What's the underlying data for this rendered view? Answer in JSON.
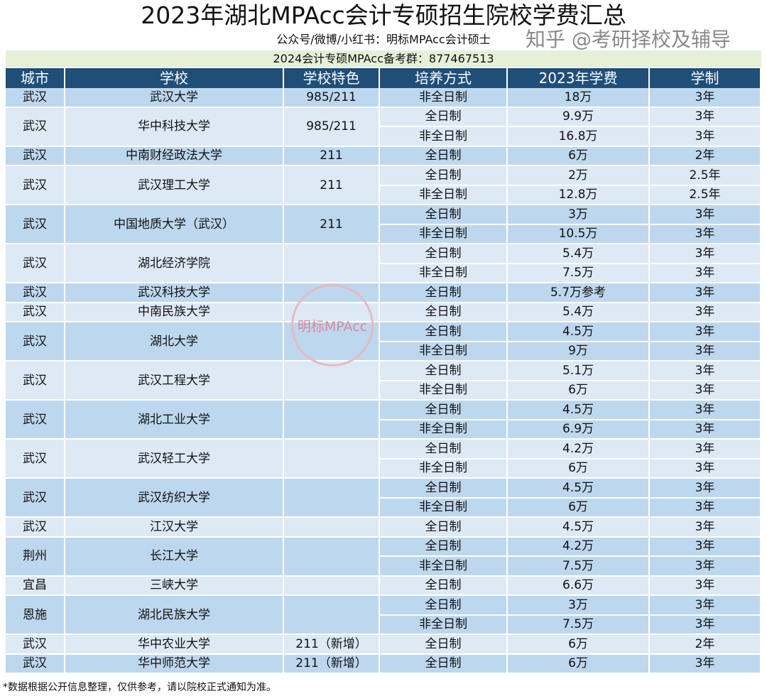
{
  "title": "2023年湖北MPAcc会计专硕招生院校学费汇总",
  "subtitle": "公众号/微博/小红书：明标MPAcc会计硕士",
  "group_line": "2024会计专硕MPAcc备考群：877467513",
  "headers": [
    "城市",
    "学校",
    "学校特色",
    "培养方式",
    "2023年学费",
    "学制"
  ],
  "colors": {
    "header_bg": "#1f4e79",
    "row_dark": "#bdd7ee",
    "row_light": "#dde9f5",
    "band": "#e6f0d8"
  },
  "schools": [
    {
      "city": "武汉",
      "name": "武汉大学",
      "feature": "985/211",
      "programs": [
        [
          "非全日制",
          "18万",
          "3年"
        ]
      ]
    },
    {
      "city": "武汉",
      "name": "华中科技大学",
      "feature": "985/211",
      "programs": [
        [
          "全日制",
          "9.9万",
          "3年"
        ],
        [
          "非全日制",
          "16.8万",
          "3年"
        ]
      ]
    },
    {
      "city": "武汉",
      "name": "中南财经政法大学",
      "feature": "211",
      "programs": [
        [
          "全日制",
          "6万",
          "2年"
        ]
      ]
    },
    {
      "city": "武汉",
      "name": "武汉理工大学",
      "feature": "211",
      "programs": [
        [
          "全日制",
          "2万",
          "2.5年"
        ],
        [
          "非全日制",
          "12.8万",
          "2.5年"
        ]
      ]
    },
    {
      "city": "武汉",
      "name": "中国地质大学（武汉）",
      "feature": "211",
      "programs": [
        [
          "全日制",
          "3万",
          "3年"
        ],
        [
          "非全日制",
          "10.5万",
          "3年"
        ]
      ]
    },
    {
      "city": "武汉",
      "name": "湖北经济学院",
      "feature": "",
      "programs": [
        [
          "全日制",
          "5.4万",
          "3年"
        ],
        [
          "非全日制",
          "7.5万",
          "3年"
        ]
      ]
    },
    {
      "city": "武汉",
      "name": "武汉科技大学",
      "feature": "",
      "programs": [
        [
          "全日制",
          "5.7万参考",
          "3年"
        ]
      ]
    },
    {
      "city": "武汉",
      "name": "中南民族大学",
      "feature": "",
      "programs": [
        [
          "全日制",
          "5.4万",
          "3年"
        ]
      ]
    },
    {
      "city": "武汉",
      "name": "湖北大学",
      "feature": "",
      "programs": [
        [
          "全日制",
          "4.5万",
          "3年"
        ],
        [
          "非全日制",
          "9万",
          "3年"
        ]
      ]
    },
    {
      "city": "武汉",
      "name": "武汉工程大学",
      "feature": "",
      "programs": [
        [
          "全日制",
          "5.1万",
          "3年"
        ],
        [
          "非全日制",
          "6万",
          "3年"
        ]
      ]
    },
    {
      "city": "武汉",
      "name": "湖北工业大学",
      "feature": "",
      "programs": [
        [
          "全日制",
          "4.5万",
          "3年"
        ],
        [
          "非全日制",
          "6.9万",
          "3年"
        ]
      ]
    },
    {
      "city": "武汉",
      "name": "武汉轻工大学",
      "feature": "",
      "programs": [
        [
          "全日制",
          "4.2万",
          "3年"
        ],
        [
          "非全日制",
          "6万",
          "3年"
        ]
      ]
    },
    {
      "city": "武汉",
      "name": "武汉纺织大学",
      "feature": "",
      "programs": [
        [
          "全日制",
          "4.5万",
          "3年"
        ],
        [
          "非全日制",
          "6万",
          "3年"
        ]
      ]
    },
    {
      "city": "武汉",
      "name": "江汉大学",
      "feature": "",
      "programs": [
        [
          "全日制",
          "4.5万",
          "3年"
        ]
      ]
    },
    {
      "city": "荆州",
      "name": "长江大学",
      "feature": "",
      "programs": [
        [
          "全日制",
          "4.2万",
          "3年"
        ],
        [
          "非全日制",
          "7.5万",
          "3年"
        ]
      ]
    },
    {
      "city": "宜昌",
      "name": "三峡大学",
      "feature": "",
      "programs": [
        [
          "全日制",
          "6.6万",
          "3年"
        ]
      ]
    },
    {
      "city": "恩施",
      "name": "湖北民族大学",
      "feature": "",
      "programs": [
        [
          "全日制",
          "3万",
          "3年"
        ],
        [
          "非全日制",
          "7.5万",
          "3年"
        ]
      ]
    },
    {
      "city": "武汉",
      "name": "华中农业大学",
      "feature": "211（新增）",
      "programs": [
        [
          "全日制",
          "6万",
          "2年"
        ]
      ]
    },
    {
      "city": "武汉",
      "name": "华中师范大学",
      "feature": "211（新增）",
      "programs": [
        [
          "全日制",
          "6万",
          "3年"
        ]
      ]
    }
  ],
  "footnote": "*数据根据公开信息整理，仅供参考，请以院校正式通知为准。",
  "stamp_text": "明标MPAcc",
  "watermark": "知乎 @考研择校及辅导"
}
